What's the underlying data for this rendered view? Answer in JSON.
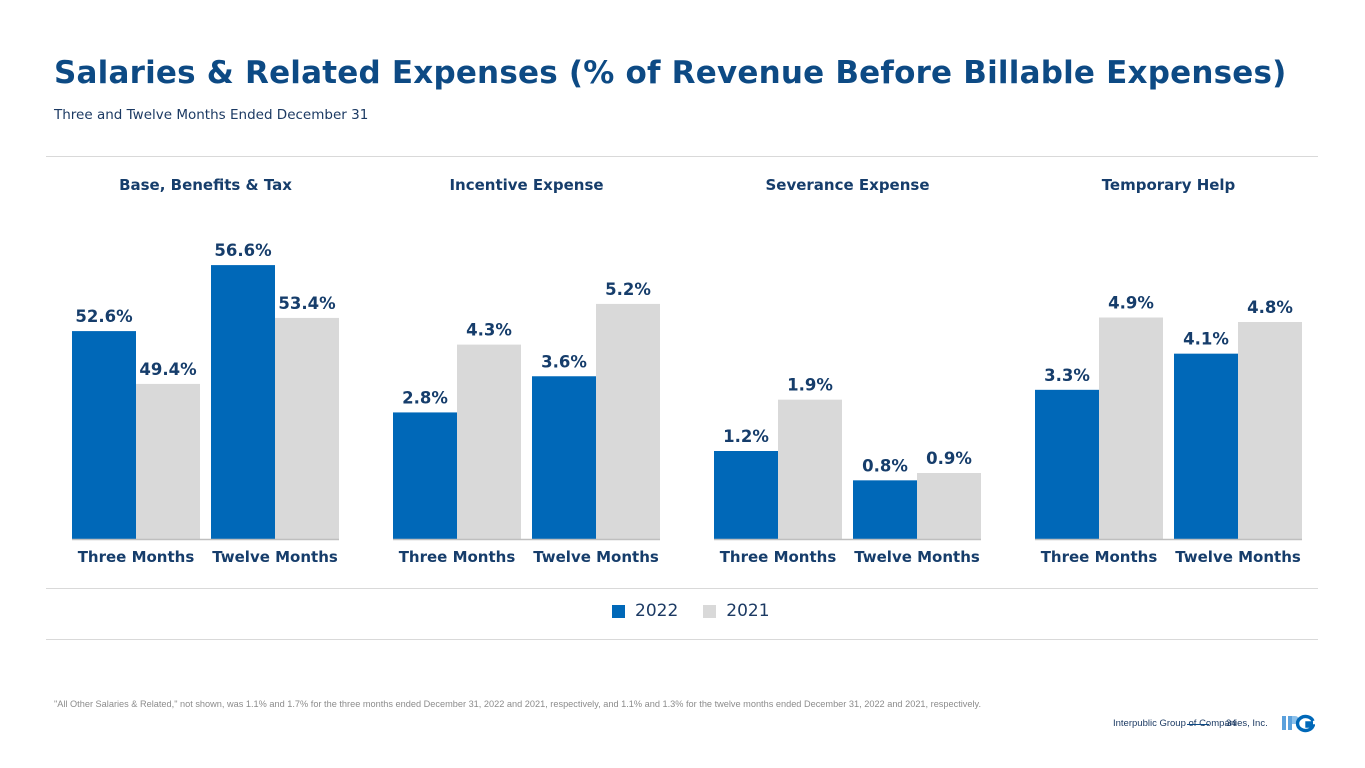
{
  "header": {
    "title": "Salaries & Related Expenses (% of Revenue Before Billable Expenses)",
    "subtitle": "Three and Twelve Months Ended December 31"
  },
  "colors": {
    "series_2022": "#0068b8",
    "series_2021": "#d9d9d9",
    "label": "#163d6b",
    "title": "#0d4a84"
  },
  "chart_data": [
    {
      "type": "bar",
      "title": "Base, Benefits & Tax",
      "categories": [
        "Three Months",
        "Twelve Months"
      ],
      "series": [
        {
          "name": "2022",
          "values": [
            52.6,
            56.6
          ],
          "labels": [
            "52.6%",
            "56.6%"
          ]
        },
        {
          "name": "2021",
          "values": [
            49.4,
            53.4
          ],
          "labels": [
            "49.4%",
            "53.4%"
          ]
        }
      ],
      "ylim": [
        40,
        60
      ],
      "xlabel": "",
      "ylabel": "",
      "grid": false
    },
    {
      "type": "bar",
      "title": "Incentive Expense",
      "categories": [
        "Three Months",
        "Twelve Months"
      ],
      "series": [
        {
          "name": "2022",
          "values": [
            2.8,
            3.6
          ],
          "labels": [
            "2.8%",
            "3.6%"
          ]
        },
        {
          "name": "2021",
          "values": [
            4.3,
            5.2
          ],
          "labels": [
            "4.3%",
            "5.2%"
          ]
        }
      ],
      "ylim": [
        0,
        7.3
      ],
      "xlabel": "",
      "ylabel": "",
      "grid": false
    },
    {
      "type": "bar",
      "title": "Severance Expense",
      "categories": [
        "Three Months",
        "Twelve Months"
      ],
      "series": [
        {
          "name": "2022",
          "values": [
            1.2,
            0.8
          ],
          "labels": [
            "1.2%",
            "0.8%"
          ]
        },
        {
          "name": "2021",
          "values": [
            1.9,
            0.9
          ],
          "labels": [
            "1.9%",
            "0.9%"
          ]
        }
      ],
      "ylim": [
        0,
        4.5
      ],
      "xlabel": "",
      "ylabel": "",
      "grid": false
    },
    {
      "type": "bar",
      "title": "Temporary Help",
      "categories": [
        "Three Months",
        "Twelve Months"
      ],
      "series": [
        {
          "name": "2022",
          "values": [
            3.3,
            4.1
          ],
          "labels": [
            "3.3%",
            "4.1%"
          ]
        },
        {
          "name": "2021",
          "values": [
            4.9,
            4.8
          ],
          "labels": [
            "4.9%",
            "4.8%"
          ]
        }
      ],
      "ylim": [
        0,
        7.3
      ],
      "xlabel": "",
      "ylabel": "",
      "grid": false
    }
  ],
  "legend": {
    "placement": "bottom-center",
    "items": [
      {
        "label": "2022"
      },
      {
        "label": "2021"
      }
    ]
  },
  "footer": {
    "footnote": "\"All Other Salaries & Related,\" not shown, was 1.1% and 1.7% for the three months ended December 31, 2022 and 2021, respectively, and 1.1% and 1.3% for the twelve months ended December 31, 2022 and 2021, respectively.",
    "company": "Interpublic Group of Companies, Inc.",
    "page_number": "34",
    "logo_text": "IPG"
  }
}
